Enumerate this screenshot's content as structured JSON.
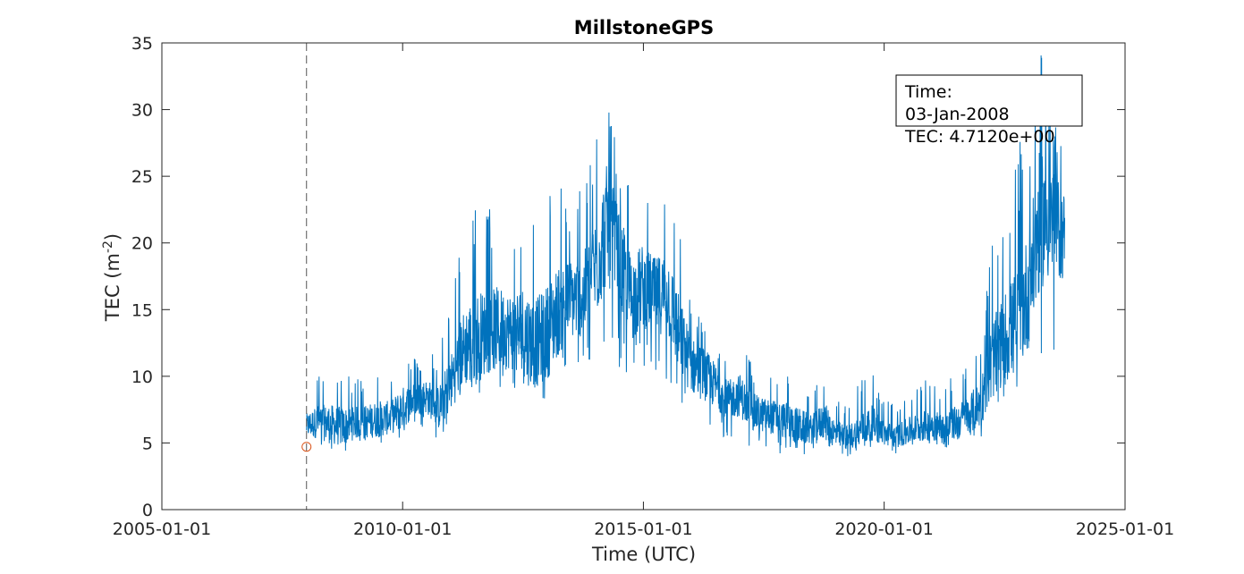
{
  "chart_data": {
    "type": "line",
    "title": "MillstoneGPS",
    "xlabel": "Time (UTC)",
    "ylabel_main": "TEC (m",
    "ylabel_sup": "-2",
    "ylabel_close": ")",
    "xlim": [
      "2005-01-01",
      "2025-01-01"
    ],
    "ylim": [
      0,
      35
    ],
    "xticks": [
      "2005-01-01",
      "2010-01-01",
      "2015-01-01",
      "2020-01-01",
      "2025-01-01"
    ],
    "yticks": [
      0,
      5,
      10,
      15,
      20,
      25,
      30,
      35
    ],
    "grid": false,
    "series_color": "#0072bd",
    "marker_color": "#d95319",
    "cursor_color": "#555555",
    "series": [
      {
        "x": [
          "2008-01-03",
          "2008-04-01",
          "2008-07-01",
          "2008-10-01",
          "2009-01-01",
          "2009-04-01",
          "2009-07-01",
          "2009-10-01",
          "2010-01-01",
          "2010-04-01",
          "2010-07-01",
          "2010-10-01",
          "2011-01-01",
          "2011-04-01",
          "2011-07-01",
          "2011-10-01",
          "2012-01-01",
          "2012-04-01",
          "2012-07-01",
          "2012-10-01",
          "2013-01-01",
          "2013-04-01",
          "2013-07-01",
          "2013-10-01",
          "2014-01-01",
          "2014-04-01",
          "2014-07-01",
          "2014-10-01",
          "2015-01-01",
          "2015-04-01",
          "2015-07-01",
          "2015-10-01",
          "2016-01-01",
          "2016-04-01",
          "2016-07-01",
          "2016-10-01",
          "2017-01-01",
          "2017-04-01",
          "2017-07-01",
          "2017-10-01",
          "2018-01-01",
          "2018-04-01",
          "2018-07-01",
          "2018-10-01",
          "2019-01-01",
          "2019-04-01",
          "2019-07-01",
          "2019-10-01",
          "2020-01-01",
          "2020-04-01",
          "2020-07-01",
          "2020-10-01",
          "2021-01-01",
          "2021-04-01",
          "2021-07-01",
          "2021-10-01",
          "2022-01-01",
          "2022-04-01",
          "2022-07-01",
          "2022-10-01",
          "2023-01-01",
          "2023-04-01",
          "2023-07-01",
          "2023-10-01"
        ],
        "mean": [
          6.3,
          6.6,
          6.4,
          6.2,
          6.5,
          6.6,
          6.8,
          6.9,
          7.6,
          8.3,
          8.5,
          7.6,
          9.5,
          12.0,
          12.8,
          13.3,
          13.6,
          13.4,
          13.2,
          12.4,
          13.3,
          15.0,
          15.8,
          16.0,
          18.0,
          21.5,
          18.5,
          15.8,
          16.8,
          16.0,
          16.4,
          13.0,
          10.8,
          10.2,
          9.3,
          8.2,
          8.6,
          7.3,
          7.1,
          6.9,
          6.6,
          6.2,
          6.0,
          6.7,
          5.6,
          5.4,
          5.9,
          6.5,
          5.7,
          5.5,
          5.9,
          6.2,
          6.4,
          6.0,
          6.6,
          7.0,
          8.0,
          11.2,
          12.8,
          14.0,
          16.5,
          22.0,
          21.5,
          20.5
        ],
        "max": [
          8.8,
          10.5,
          11.2,
          10.1,
          9.9,
          10.2,
          11.0,
          10.5,
          12.1,
          11.4,
          11.8,
          12.2,
          16.0,
          20.5,
          24.3,
          22.8,
          22.5,
          20.8,
          24.5,
          22.0,
          24.0,
          24.2,
          23.8,
          24.5,
          29.0,
          32.6,
          28.0,
          24.0,
          24.5,
          22.5,
          23.5,
          21.0,
          15.5,
          14.5,
          13.0,
          11.5,
          12.4,
          11.2,
          10.2,
          9.8,
          10.5,
          10.4,
          9.0,
          10.8,
          8.6,
          8.1,
          9.8,
          10.4,
          8.7,
          8.1,
          9.1,
          9.6,
          10.1,
          9.5,
          10.4,
          11.9,
          13.0,
          20.5,
          24.0,
          27.0,
          29.0,
          34.3,
          30.5,
          26.0
        ],
        "min": [
          4.7,
          4.9,
          4.6,
          3.5,
          4.4,
          4.6,
          4.8,
          5.0,
          4.9,
          5.9,
          6.0,
          5.1,
          6.5,
          8.0,
          8.5,
          8.8,
          8.5,
          8.0,
          7.8,
          7.2,
          8.0,
          9.0,
          10.3,
          10.8,
          11.0,
          12.5,
          10.6,
          9.5,
          10.3,
          9.8,
          9.0,
          7.8,
          6.0,
          5.5,
          5.4,
          5.0,
          5.2,
          4.6,
          4.4,
          4.0,
          4.3,
          4.1,
          4.2,
          4.5,
          3.8,
          4.0,
          4.3,
          4.5,
          4.5,
          4.2,
          4.6,
          4.5,
          4.8,
          4.3,
          4.8,
          5.0,
          5.2,
          7.5,
          8.5,
          9.0,
          9.5,
          10.0,
          12.0,
          11.0
        ]
      }
    ],
    "cursor_x": "2008-01-03",
    "datatip": {
      "line1": "Time:",
      "line2": "03-Jan-2008",
      "line3": "TEC: 4.7120e+00",
      "time": "2008-01-03",
      "value": 4.712
    }
  }
}
